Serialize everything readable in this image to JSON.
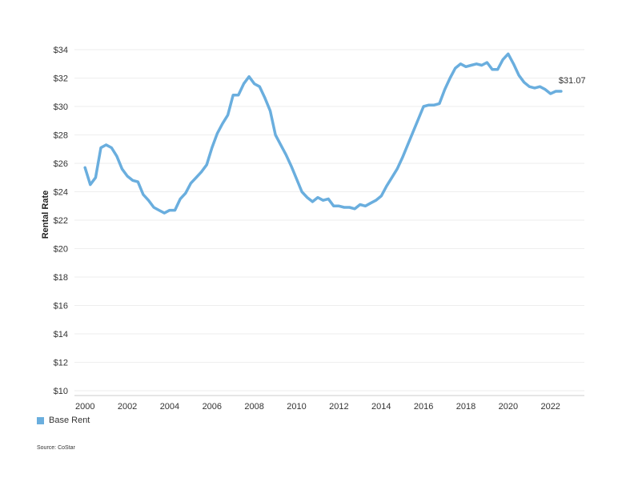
{
  "chart_data": {
    "type": "line",
    "ylabel": "Rental Rate",
    "ylim": [
      10,
      34
    ],
    "xlim": [
      1999.5,
      2023.6
    ],
    "y_ticks": [
      10,
      12,
      14,
      16,
      18,
      20,
      22,
      24,
      26,
      28,
      30,
      32,
      34
    ],
    "y_tick_labels": [
      "$10",
      "$12",
      "$14",
      "$16",
      "$18",
      "$20",
      "$22",
      "$24",
      "$26",
      "$28",
      "$30",
      "$32",
      "$34"
    ],
    "x_ticks": [
      2000,
      2002,
      2004,
      2006,
      2008,
      2010,
      2012,
      2014,
      2016,
      2018,
      2020,
      2022
    ],
    "x_tick_labels": [
      "2000",
      "2002",
      "2004",
      "2006",
      "2008",
      "2010",
      "2012",
      "2014",
      "2016",
      "2018",
      "2020",
      "2022"
    ],
    "grid": "horizontal",
    "legend_position": "bottom-left",
    "series": [
      {
        "name": "Base Rent",
        "color": "#6aaede",
        "x": [
          2000.0,
          2000.25,
          2000.5,
          2000.75,
          2001.0,
          2001.25,
          2001.5,
          2001.75,
          2002.0,
          2002.25,
          2002.5,
          2002.75,
          2003.0,
          2003.25,
          2003.5,
          2003.75,
          2004.0,
          2004.25,
          2004.5,
          2004.75,
          2005.0,
          2005.25,
          2005.5,
          2005.75,
          2006.0,
          2006.25,
          2006.5,
          2006.75,
          2007.0,
          2007.25,
          2007.5,
          2007.75,
          2008.0,
          2008.25,
          2008.5,
          2008.75,
          2009.0,
          2009.25,
          2009.5,
          2009.75,
          2010.0,
          2010.25,
          2010.5,
          2010.75,
          2011.0,
          2011.25,
          2011.5,
          2011.75,
          2012.0,
          2012.25,
          2012.5,
          2012.75,
          2013.0,
          2013.25,
          2013.5,
          2013.75,
          2014.0,
          2014.25,
          2014.5,
          2014.75,
          2015.0,
          2015.25,
          2015.5,
          2015.75,
          2016.0,
          2016.25,
          2016.5,
          2016.75,
          2017.0,
          2017.25,
          2017.5,
          2017.75,
          2018.0,
          2018.25,
          2018.5,
          2018.75,
          2019.0,
          2019.25,
          2019.5,
          2019.75,
          2020.0,
          2020.25,
          2020.5,
          2020.75,
          2021.0,
          2021.25,
          2021.5,
          2021.75,
          2022.0,
          2022.25,
          2022.5
        ],
        "values": [
          25.7,
          24.5,
          25.0,
          27.1,
          27.3,
          27.1,
          26.5,
          25.6,
          25.1,
          24.8,
          24.7,
          23.8,
          23.4,
          22.9,
          22.7,
          22.5,
          22.7,
          22.7,
          23.5,
          23.9,
          24.6,
          25.0,
          25.4,
          25.9,
          27.1,
          28.1,
          28.8,
          29.4,
          30.8,
          30.8,
          31.6,
          32.1,
          31.6,
          31.4,
          30.6,
          29.7,
          28.0,
          27.3,
          26.6,
          25.8,
          24.9,
          24.0,
          23.6,
          23.3,
          23.6,
          23.4,
          23.5,
          23.0,
          23.0,
          22.9,
          22.9,
          22.8,
          23.1,
          23.0,
          23.2,
          23.4,
          23.7,
          24.4,
          25.0,
          25.6,
          26.4,
          27.3,
          28.2,
          29.1,
          30.0,
          30.1,
          30.1,
          30.2,
          31.2,
          32.0,
          32.7,
          33.0,
          32.8,
          32.9,
          33.0,
          32.9,
          33.1,
          32.6,
          32.6,
          33.3,
          33.7,
          33.0,
          32.2,
          31.7,
          31.4,
          31.3,
          31.4,
          31.2,
          30.9,
          31.07,
          31.07
        ]
      }
    ],
    "end_label": "$31.07"
  },
  "source": "Source: CoStar",
  "legend": {
    "label": "Base Rent",
    "color": "#6aaede"
  }
}
